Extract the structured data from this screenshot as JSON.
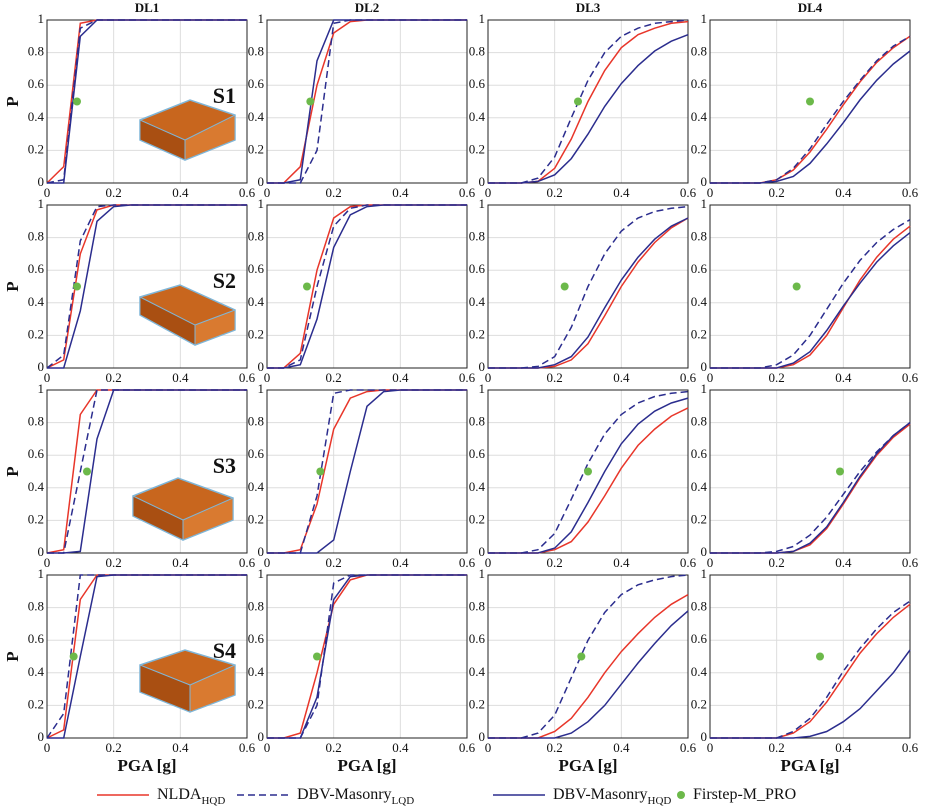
{
  "chart_data": {
    "type": "line",
    "columns": [
      "DL1",
      "DL2",
      "DL3",
      "DL4"
    ],
    "rows": [
      "S1",
      "S2",
      "S3",
      "S4"
    ],
    "ylabel": "P",
    "xlabel": "PGA [g]",
    "xlim": [
      0,
      0.6
    ],
    "ylim": [
      0,
      1
    ],
    "xticks": [
      0,
      0.2,
      0.4,
      0.6
    ],
    "yticks": [
      0,
      0.2,
      0.4,
      0.6,
      0.8,
      1
    ],
    "grid": true,
    "x": [
      0,
      0.05,
      0.1,
      0.15,
      0.2,
      0.25,
      0.3,
      0.35,
      0.4,
      0.45,
      0.5,
      0.55,
      0.6
    ],
    "series": [
      {
        "name": "NLDA",
        "subscript": "HQD",
        "color": "#e8362a",
        "linestyle": "solid"
      },
      {
        "name": "DBV-Masonry",
        "subscript": "LQD",
        "color": "#2b2d8e",
        "linestyle": "dashed"
      },
      {
        "name": "DBV-Masonry",
        "subscript": "HQD",
        "color": "#2b2d8e",
        "linestyle": "solid"
      },
      {
        "name": "Firstep-M_PRO",
        "color": "#6cb94a",
        "marker": "dot"
      }
    ],
    "panels": [
      {
        "curves": [
          [
            0,
            0.1,
            0.98,
            1,
            1,
            1,
            1,
            1,
            1,
            1,
            1,
            1,
            1
          ],
          [
            0,
            0.02,
            0.95,
            1,
            1,
            1,
            1,
            1,
            1,
            1,
            1,
            1,
            1
          ],
          [
            0,
            0,
            0.9,
            1,
            1,
            1,
            1,
            1,
            1,
            1,
            1,
            1,
            1
          ]
        ],
        "point": {
          "x": 0.09,
          "y": 0.5
        }
      },
      {
        "curves": [
          [
            0,
            0,
            0.1,
            0.6,
            0.92,
            0.99,
            1,
            1,
            1,
            1,
            1,
            1,
            1
          ],
          [
            0,
            0,
            0,
            0.2,
            0.98,
            1,
            1,
            1,
            1,
            1,
            1,
            1,
            1
          ],
          [
            0,
            0,
            0.02,
            0.75,
            1,
            1,
            1,
            1,
            1,
            1,
            1,
            1,
            1
          ]
        ],
        "point": {
          "x": 0.13,
          "y": 0.5
        }
      },
      {
        "curves": [
          [
            0,
            0,
            0,
            0.01,
            0.09,
            0.27,
            0.5,
            0.69,
            0.83,
            0.91,
            0.95,
            0.98,
            0.99
          ],
          [
            0,
            0,
            0,
            0.03,
            0.16,
            0.4,
            0.63,
            0.8,
            0.9,
            0.95,
            0.98,
            0.99,
            1
          ],
          [
            0,
            0,
            0,
            0.01,
            0.05,
            0.15,
            0.3,
            0.47,
            0.61,
            0.72,
            0.81,
            0.87,
            0.91
          ]
        ],
        "point": {
          "x": 0.27,
          "y": 0.5
        }
      },
      {
        "curves": [
          [
            0,
            0,
            0,
            0,
            0.02,
            0.08,
            0.19,
            0.33,
            0.48,
            0.62,
            0.74,
            0.83,
            0.9
          ],
          [
            0,
            0,
            0,
            0,
            0.02,
            0.09,
            0.21,
            0.36,
            0.5,
            0.63,
            0.75,
            0.84,
            0.9
          ],
          [
            0,
            0,
            0,
            0,
            0.01,
            0.04,
            0.12,
            0.24,
            0.37,
            0.51,
            0.63,
            0.73,
            0.81
          ]
        ],
        "point": {
          "x": 0.3,
          "y": 0.5
        }
      },
      {
        "curves": [
          [
            0,
            0.05,
            0.7,
            0.97,
            1,
            1,
            1,
            1,
            1,
            1,
            1,
            1,
            1
          ],
          [
            0,
            0.08,
            0.78,
            0.99,
            1,
            1,
            1,
            1,
            1,
            1,
            1,
            1,
            1
          ],
          [
            0,
            0,
            0.35,
            0.9,
            0.99,
            1,
            1,
            1,
            1,
            1,
            1,
            1,
            1
          ]
        ],
        "point": {
          "x": 0.09,
          "y": 0.5
        }
      },
      {
        "curves": [
          [
            0,
            0,
            0.09,
            0.6,
            0.92,
            0.99,
            1,
            1,
            1,
            1,
            1,
            1,
            1
          ],
          [
            0,
            0,
            0.05,
            0.5,
            0.87,
            0.98,
            1,
            1,
            1,
            1,
            1,
            1,
            1
          ],
          [
            0,
            0,
            0.02,
            0.3,
            0.74,
            0.94,
            0.99,
            1,
            1,
            1,
            1,
            1,
            1
          ]
        ],
        "point": {
          "x": 0.12,
          "y": 0.5
        }
      },
      {
        "curves": [
          [
            0,
            0,
            0,
            0,
            0.01,
            0.05,
            0.15,
            0.32,
            0.5,
            0.65,
            0.77,
            0.86,
            0.92
          ],
          [
            0,
            0,
            0,
            0.01,
            0.07,
            0.25,
            0.5,
            0.7,
            0.84,
            0.92,
            0.96,
            0.98,
            0.99
          ],
          [
            0,
            0,
            0,
            0,
            0.02,
            0.07,
            0.19,
            0.37,
            0.54,
            0.68,
            0.79,
            0.87,
            0.92
          ]
        ],
        "point": {
          "x": 0.23,
          "y": 0.5
        }
      },
      {
        "curves": [
          [
            0,
            0,
            0,
            0,
            0,
            0.02,
            0.08,
            0.2,
            0.37,
            0.54,
            0.68,
            0.79,
            0.87
          ],
          [
            0,
            0,
            0,
            0,
            0.02,
            0.08,
            0.2,
            0.36,
            0.52,
            0.66,
            0.77,
            0.85,
            0.91
          ],
          [
            0,
            0,
            0,
            0,
            0,
            0.03,
            0.1,
            0.23,
            0.38,
            0.52,
            0.65,
            0.75,
            0.83
          ]
        ],
        "point": {
          "x": 0.26,
          "y": 0.5
        }
      },
      {
        "curves": [
          [
            0,
            0.02,
            0.85,
            1,
            1,
            1,
            1,
            1,
            1,
            1,
            1,
            1,
            1
          ],
          [
            0,
            0,
            0.5,
            1,
            1,
            1,
            1,
            1,
            1,
            1,
            1,
            1,
            1
          ],
          [
            0,
            0,
            0.01,
            0.7,
            1,
            1,
            1,
            1,
            1,
            1,
            1,
            1,
            1
          ]
        ],
        "point": {
          "x": 0.12,
          "y": 0.5
        }
      },
      {
        "curves": [
          [
            0,
            0,
            0.02,
            0.3,
            0.76,
            0.95,
            0.99,
            1,
            1,
            1,
            1,
            1,
            1
          ],
          [
            0,
            0,
            0,
            0.35,
            0.98,
            1,
            1,
            1,
            1,
            1,
            1,
            1,
            1
          ],
          [
            0,
            0,
            0,
            0,
            0.08,
            0.5,
            0.9,
            0.99,
            1,
            1,
            1,
            1,
            1
          ]
        ],
        "point": {
          "x": 0.16,
          "y": 0.5
        }
      },
      {
        "curves": [
          [
            0,
            0,
            0,
            0,
            0.02,
            0.07,
            0.19,
            0.35,
            0.52,
            0.66,
            0.76,
            0.84,
            0.89
          ],
          [
            0,
            0,
            0,
            0.02,
            0.12,
            0.33,
            0.55,
            0.73,
            0.85,
            0.92,
            0.96,
            0.98,
            0.99
          ],
          [
            0,
            0,
            0,
            0,
            0.03,
            0.13,
            0.31,
            0.5,
            0.67,
            0.79,
            0.87,
            0.92,
            0.95
          ]
        ],
        "point": {
          "x": 0.3,
          "y": 0.5
        }
      },
      {
        "curves": [
          [
            0,
            0,
            0,
            0,
            0,
            0.01,
            0.05,
            0.15,
            0.3,
            0.46,
            0.6,
            0.71,
            0.79
          ],
          [
            0,
            0,
            0,
            0,
            0.01,
            0.04,
            0.11,
            0.22,
            0.36,
            0.5,
            0.62,
            0.72,
            0.8
          ],
          [
            0,
            0,
            0,
            0,
            0,
            0.01,
            0.06,
            0.16,
            0.31,
            0.47,
            0.61,
            0.72,
            0.8
          ]
        ],
        "point": {
          "x": 0.39,
          "y": 0.5
        }
      },
      {
        "curves": [
          [
            0,
            0.05,
            0.85,
            1,
            1,
            1,
            1,
            1,
            1,
            1,
            1,
            1,
            1
          ],
          [
            0,
            0.15,
            1,
            1,
            1,
            1,
            1,
            1,
            1,
            1,
            1,
            1,
            1
          ],
          [
            0,
            0,
            0.5,
            0.99,
            1,
            1,
            1,
            1,
            1,
            1,
            1,
            1,
            1
          ]
        ],
        "point": {
          "x": 0.08,
          "y": 0.5
        }
      },
      {
        "curves": [
          [
            0,
            0,
            0.03,
            0.4,
            0.82,
            0.97,
            1,
            1,
            1,
            1,
            1,
            1,
            1
          ],
          [
            0,
            0,
            0,
            0.2,
            0.95,
            1,
            1,
            1,
            1,
            1,
            1,
            1,
            1
          ],
          [
            0,
            0,
            0,
            0.25,
            0.85,
            0.99,
            1,
            1,
            1,
            1,
            1,
            1,
            1
          ]
        ],
        "point": {
          "x": 0.15,
          "y": 0.5
        }
      },
      {
        "curves": [
          [
            0,
            0,
            0,
            0,
            0.04,
            0.12,
            0.25,
            0.4,
            0.53,
            0.64,
            0.74,
            0.82,
            0.88
          ],
          [
            0,
            0,
            0,
            0.03,
            0.14,
            0.37,
            0.6,
            0.77,
            0.88,
            0.94,
            0.97,
            0.99,
            1
          ],
          [
            0,
            0,
            0,
            0,
            0,
            0.03,
            0.1,
            0.2,
            0.33,
            0.46,
            0.58,
            0.69,
            0.78
          ]
        ],
        "point": {
          "x": 0.28,
          "y": 0.5
        }
      },
      {
        "curves": [
          [
            0,
            0,
            0,
            0,
            0,
            0.03,
            0.1,
            0.22,
            0.37,
            0.52,
            0.64,
            0.74,
            0.82
          ],
          [
            0,
            0,
            0,
            0,
            0,
            0.04,
            0.12,
            0.25,
            0.41,
            0.55,
            0.67,
            0.77,
            0.84
          ],
          [
            0,
            0,
            0,
            0,
            0,
            0,
            0.01,
            0.04,
            0.1,
            0.18,
            0.29,
            0.4,
            0.54
          ]
        ],
        "point": {
          "x": 0.33,
          "y": 0.5
        }
      }
    ]
  }
}
